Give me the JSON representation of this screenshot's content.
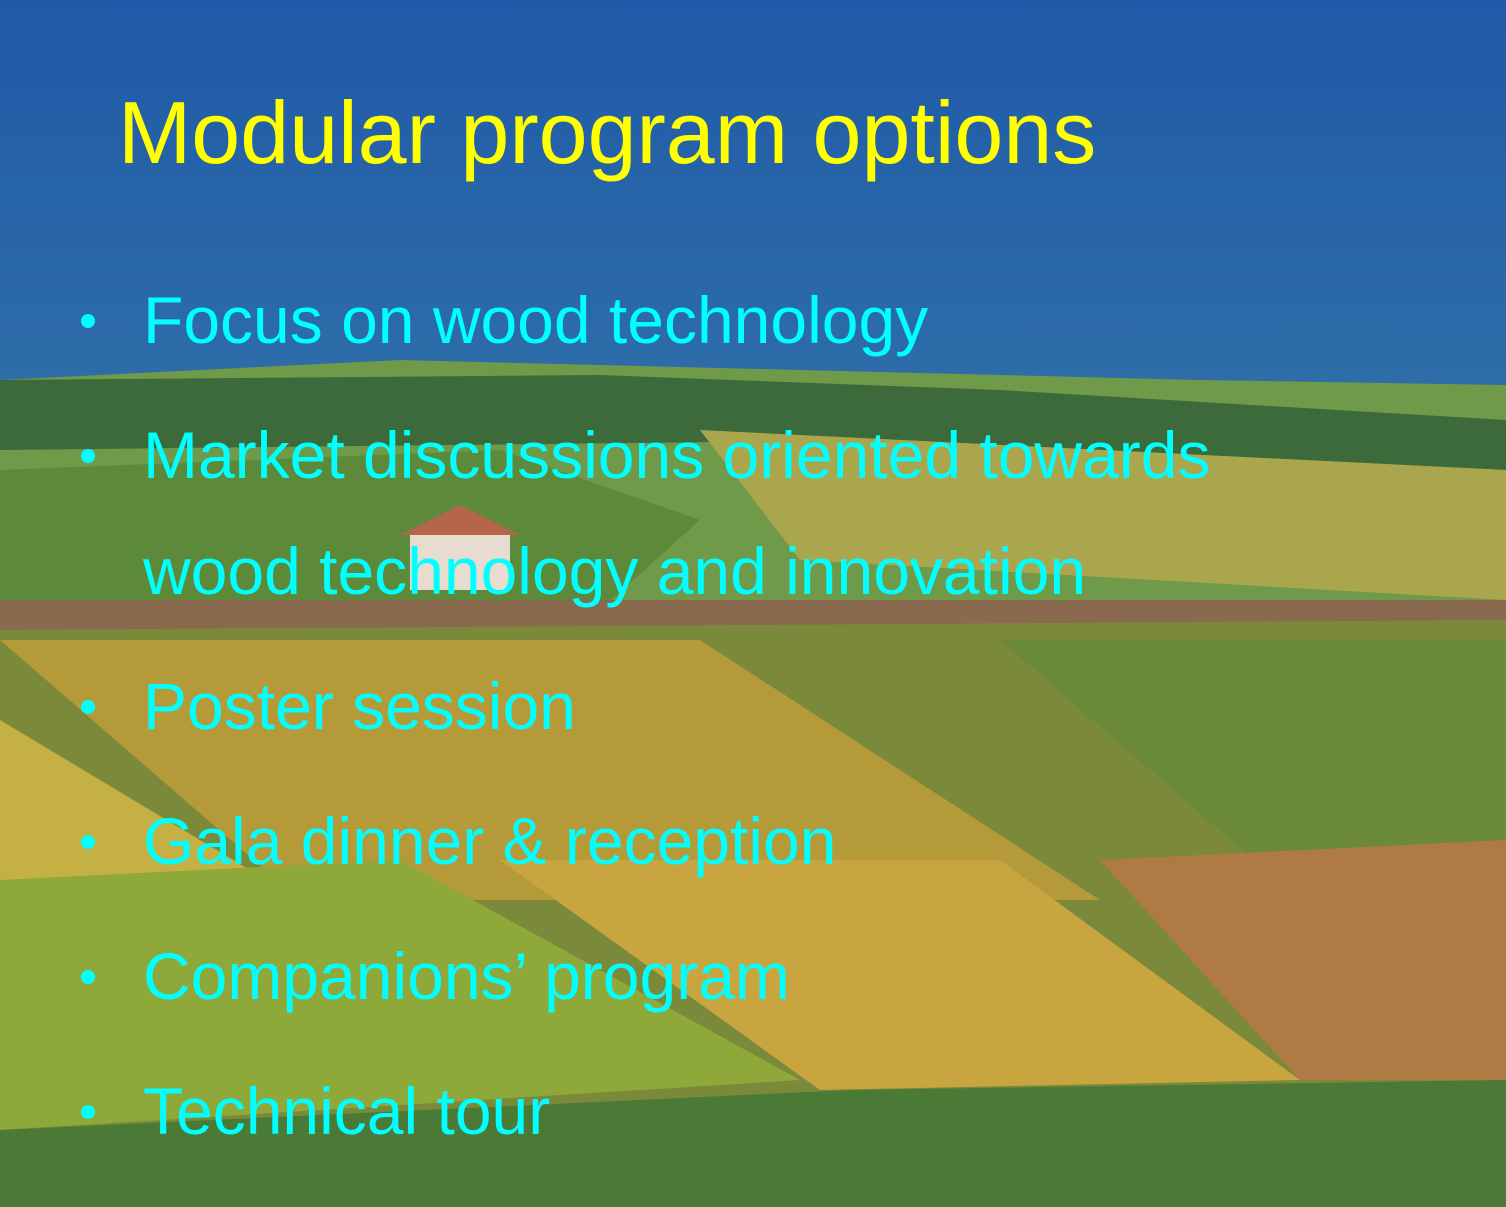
{
  "title": "Modular program options",
  "bullets": [
    "Focus on wood technology",
    "Market discussions oriented towards wood technology and innovation",
    "Poster session",
    "Gala dinner & reception",
    "Companions’ program",
    "Technical tour"
  ]
}
